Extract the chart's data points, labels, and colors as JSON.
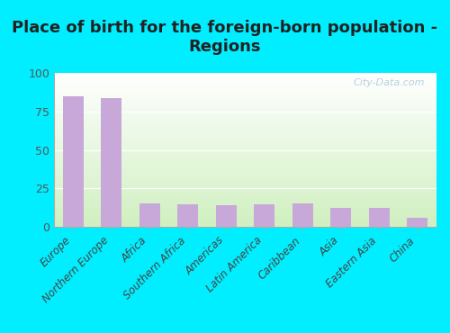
{
  "title": "Place of birth for the foreign-born population -\nRegions",
  "categories": [
    "Europe",
    "Northern Europe",
    "Africa",
    "Southern Africa",
    "Americas",
    "Latin America",
    "Caribbean",
    "Asia",
    "Eastern Asia",
    "China"
  ],
  "values": [
    85,
    84,
    15,
    14.5,
    14,
    14.5,
    15,
    12,
    12,
    5.5
  ],
  "bar_color": "#c8a8d8",
  "outer_bg": "#00eeff",
  "ylim": [
    0,
    100
  ],
  "yticks": [
    0,
    25,
    50,
    75,
    100
  ],
  "title_fontsize": 13,
  "tick_fontsize": 8.5,
  "ytick_fontsize": 9,
  "watermark": "City-Data.com"
}
